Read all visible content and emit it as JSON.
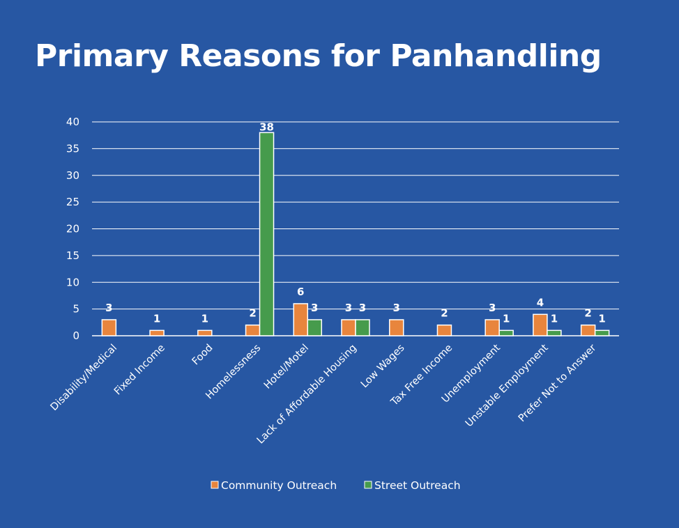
{
  "chart_data": {
    "type": "bar",
    "title": "Primary Reasons for Panhandling",
    "xlabel": "",
    "ylabel": "",
    "ylim": [
      0,
      40
    ],
    "yticks": [
      0,
      5,
      10,
      15,
      20,
      25,
      30,
      35,
      40
    ],
    "grid": true,
    "legend_position": "bottom",
    "categories": [
      "Disability/Medical",
      "Fixed Income",
      "Food",
      "Homelessness",
      "Hotel/Motel",
      "Lack of Affordable Housing",
      "Low Wages",
      "Tax Free Income",
      "Unemployment",
      "Unstable Employment",
      "Prefer Not to Answer"
    ],
    "series": [
      {
        "name": "Community Outreach",
        "color": "#e8853d",
        "values": [
          3,
          1,
          1,
          2,
          6,
          3,
          3,
          2,
          3,
          4,
          2
        ]
      },
      {
        "name": "Street Outreach",
        "color": "#469b4c",
        "values": [
          null,
          null,
          null,
          38,
          3,
          3,
          null,
          null,
          1,
          1,
          1
        ]
      }
    ]
  },
  "colors": {
    "background": "#2757a3",
    "text": "#ffffff",
    "gridline": "#ffffff"
  }
}
